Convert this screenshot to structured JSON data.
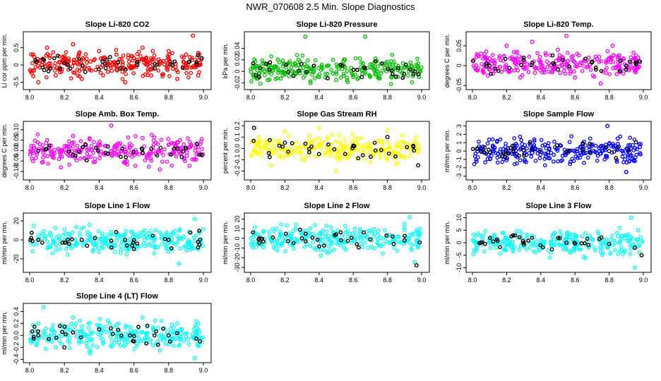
{
  "page_title": "NWR_070608  2.5 Min. Slope Diagnostics",
  "chart_data": [
    {
      "type": "scatter",
      "title": "Slope Li-820 CO2",
      "ylabel": "Li cor ppm per min.",
      "color": "#ff0000",
      "xlim": [
        8.0,
        9.0
      ],
      "ylim": [
        -0.65,
        0.9
      ],
      "xticks": [
        "8.0",
        "8.2",
        "8.4",
        "8.6",
        "8.8",
        "9.0"
      ],
      "yticks": [
        -0.5,
        0,
        0.5
      ],
      "ytick_labels": [
        "-0.5",
        "0",
        "0.5"
      ],
      "points": [
        [
          8.02,
          0.3
        ],
        [
          8.05,
          -0.5
        ],
        [
          8.1,
          0.5
        ],
        [
          8.15,
          -0.3
        ],
        [
          8.2,
          0.2
        ],
        [
          8.25,
          0.6
        ],
        [
          8.3,
          -0.4
        ],
        [
          8.35,
          0.1
        ],
        [
          8.4,
          0.4
        ],
        [
          8.45,
          -0.2
        ],
        [
          8.5,
          0.3
        ],
        [
          8.55,
          -0.5
        ],
        [
          8.6,
          0.2
        ],
        [
          8.65,
          0.5
        ],
        [
          8.7,
          -0.3
        ],
        [
          8.75,
          0.1
        ],
        [
          8.8,
          0.4
        ],
        [
          8.85,
          -0.4
        ],
        [
          8.9,
          0.3
        ],
        [
          8.94,
          0.85
        ],
        [
          8.97,
          -0.3
        ]
      ],
      "black_points": [
        [
          8.04,
          0.1
        ],
        [
          8.12,
          -0.1
        ],
        [
          8.22,
          0.0
        ],
        [
          8.32,
          -0.2
        ],
        [
          8.42,
          0.1
        ],
        [
          8.52,
          -0.1
        ],
        [
          8.62,
          0.0
        ],
        [
          8.72,
          -0.1
        ],
        [
          8.82,
          0.0
        ],
        [
          8.92,
          0.1
        ],
        [
          8.99,
          0.2
        ]
      ]
    },
    {
      "type": "scatter",
      "title": "Slope Li-820 Pressure",
      "ylabel": "kPa per min.",
      "color": "#00c000",
      "xlim": [
        8.0,
        9.0
      ],
      "ylim": [
        -0.028,
        0.065
      ],
      "xticks": [
        "8.0",
        "8.2",
        "8.4",
        "8.6",
        "8.8",
        "9.0"
      ],
      "yticks": [
        -0.02,
        0,
        0.02,
        0.04
      ],
      "ytick_labels": [
        "-0.02",
        "0",
        "0.02",
        "0.04"
      ],
      "points": [
        [
          8.03,
          -0.01
        ],
        [
          8.1,
          -0.015
        ],
        [
          8.2,
          -0.005
        ],
        [
          8.28,
          0.02
        ],
        [
          8.32,
          0.06
        ],
        [
          8.35,
          -0.02
        ],
        [
          8.4,
          -0.01
        ],
        [
          8.5,
          -0.015
        ],
        [
          8.6,
          -0.01
        ],
        [
          8.67,
          0.06
        ],
        [
          8.75,
          -0.012
        ],
        [
          8.85,
          -0.01
        ],
        [
          8.95,
          -0.008
        ]
      ],
      "black_points": [
        [
          8.05,
          -0.01
        ],
        [
          8.25,
          -0.008
        ],
        [
          8.45,
          -0.012
        ],
        [
          8.65,
          -0.01
        ],
        [
          8.85,
          -0.009
        ],
        [
          8.98,
          -0.005
        ]
      ]
    },
    {
      "type": "scatter",
      "title": "Slope Li-820 Temp.",
      "ylabel": "degrees C per min.",
      "color": "#ff00ff",
      "xlim": [
        8.0,
        9.0
      ],
      "ylim": [
        -0.055,
        0.08
      ],
      "xticks": [
        "8.0",
        "8.2",
        "8.4",
        "8.6",
        "8.8",
        "9.0"
      ],
      "yticks": [
        -0.05,
        0,
        0.05
      ],
      "ytick_labels": [
        "-0.05",
        "0",
        "0.05"
      ],
      "points": [
        [
          8.05,
          0.03
        ],
        [
          8.12,
          -0.02
        ],
        [
          8.2,
          0.05
        ],
        [
          8.28,
          -0.03
        ],
        [
          8.35,
          0.06
        ],
        [
          8.42,
          -0.01
        ],
        [
          8.5,
          0.04
        ],
        [
          8.55,
          0.075
        ],
        [
          8.6,
          -0.03
        ],
        [
          8.68,
          0.02
        ],
        [
          8.75,
          -0.045
        ],
        [
          8.82,
          0.05
        ],
        [
          8.9,
          -0.01
        ],
        [
          8.97,
          0.02
        ]
      ],
      "black_points": [
        [
          8.1,
          0.0
        ],
        [
          8.3,
          0.02
        ],
        [
          8.5,
          -0.01
        ],
        [
          8.7,
          0.01
        ],
        [
          8.9,
          0.0
        ],
        [
          8.98,
          0.01
        ]
      ]
    },
    {
      "type": "scatter",
      "title": "Slope Amb. Box Temp.",
      "ylabel": "degrees C per min.",
      "color": "#ff00ff",
      "xlim": [
        8.0,
        9.0
      ],
      "ylim": [
        -0.13,
        0.13
      ],
      "xticks": [
        "8.0",
        "8.2",
        "8.4",
        "8.6",
        "8.8",
        "9.0"
      ],
      "yticks": [
        -0.1,
        -0.05,
        0,
        0.05,
        0.1
      ],
      "ytick_labels": [
        "-0.10",
        "-0.05",
        "0.00",
        "0.05",
        "0.10"
      ],
      "points": [
        [
          8.02,
          -0.05
        ],
        [
          8.1,
          0.05
        ],
        [
          8.18,
          -0.08
        ],
        [
          8.25,
          0.07
        ],
        [
          8.35,
          -0.03
        ],
        [
          8.47,
          0.12
        ],
        [
          8.55,
          -0.06
        ],
        [
          8.65,
          0.06
        ],
        [
          8.75,
          -0.09
        ],
        [
          8.85,
          0.04
        ],
        [
          8.95,
          -0.04
        ]
      ],
      "black_points": [
        [
          8.05,
          0.0
        ],
        [
          8.25,
          -0.02
        ],
        [
          8.45,
          0.02
        ],
        [
          8.65,
          -0.01
        ],
        [
          8.85,
          0.01
        ],
        [
          8.99,
          -0.02
        ]
      ]
    },
    {
      "type": "scatter",
      "title": "Slope Gas Stream RH",
      "ylabel": "percent per min.",
      "color": "#ffff00",
      "xlim": [
        8.0,
        9.0
      ],
      "ylim": [
        -0.26,
        0.22
      ],
      "xticks": [
        "8.0",
        "8.2",
        "8.4",
        "8.6",
        "8.8",
        "9.0"
      ],
      "yticks": [
        -0.2,
        -0.1,
        0,
        0.1,
        0.2
      ],
      "ytick_labels": [
        "-0.2",
        "-0.1",
        "0.0",
        "0.1",
        "0.2"
      ],
      "points": [
        [
          8.05,
          0.1
        ],
        [
          8.12,
          -0.15
        ],
        [
          8.2,
          0.15
        ],
        [
          8.3,
          -0.1
        ],
        [
          8.4,
          0.18
        ],
        [
          8.5,
          -0.2
        ],
        [
          8.6,
          0.12
        ],
        [
          8.7,
          -0.12
        ],
        [
          8.8,
          0.16
        ],
        [
          8.9,
          -0.08
        ],
        [
          8.97,
          0.1
        ]
      ],
      "black_points": [
        [
          8.02,
          0.18
        ],
        [
          8.2,
          0.05
        ],
        [
          8.4,
          -0.05
        ],
        [
          8.6,
          0.02
        ],
        [
          8.8,
          0.1
        ],
        [
          8.98,
          -0.15
        ]
      ]
    },
    {
      "type": "scatter",
      "title": "Slope Sample Flow",
      "ylabel": "ml/min per min.",
      "color": "#0000ff",
      "xlim": [
        8.0,
        9.0
      ],
      "ylim": [
        -3.2,
        3.3
      ],
      "xticks": [
        "8.0",
        "8.2",
        "8.4",
        "8.6",
        "8.8",
        "9.0"
      ],
      "yticks": [
        -3,
        -2,
        -1,
        0,
        1,
        2,
        3
      ],
      "ytick_labels": [
        "-3",
        "-2",
        "-1",
        "0",
        "1",
        "2",
        "3"
      ],
      "points": [
        [
          8.05,
          0.2
        ],
        [
          8.15,
          -0.3
        ],
        [
          8.25,
          0.4
        ],
        [
          8.35,
          -0.2
        ],
        [
          8.45,
          0.3
        ],
        [
          8.55,
          -0.1
        ],
        [
          8.65,
          0.2
        ],
        [
          8.75,
          -0.3
        ],
        [
          8.79,
          3.0
        ],
        [
          8.85,
          1.5
        ],
        [
          8.9,
          -2.5
        ],
        [
          8.95,
          -1.2
        ],
        [
          8.98,
          0.5
        ]
      ],
      "black_points": [
        [
          8.05,
          0.0
        ],
        [
          8.3,
          0.1
        ],
        [
          8.55,
          -0.1
        ],
        [
          8.8,
          0.0
        ]
      ]
    },
    {
      "type": "scatter",
      "title": "Slope Line 1 Flow",
      "ylabel": "ml/min per min.",
      "color": "#00ffff",
      "xlim": [
        8.0,
        9.0
      ],
      "ylim": [
        -32,
        26
      ],
      "xticks": [
        "8.0",
        "8.2",
        "8.4",
        "8.6",
        "8.8",
        "9.0"
      ],
      "yticks": [
        -20,
        0,
        20
      ],
      "ytick_labels": [
        "-20",
        "0",
        "20"
      ],
      "points": [
        [
          8.05,
          0.5
        ],
        [
          8.2,
          -1
        ],
        [
          8.4,
          1
        ],
        [
          8.6,
          -0.5
        ],
        [
          8.8,
          1
        ],
        [
          8.86,
          -25
        ],
        [
          8.92,
          8
        ],
        [
          8.95,
          22
        ],
        [
          8.97,
          -10
        ]
      ],
      "black_points": [
        [
          8.05,
          0
        ],
        [
          8.3,
          0
        ],
        [
          8.55,
          0
        ],
        [
          8.8,
          0
        ],
        [
          8.98,
          0
        ]
      ]
    },
    {
      "type": "scatter",
      "title": "Slope Line 2 Flow",
      "ylabel": "ml/min per min.",
      "color": "#00ffff",
      "xlim": [
        8.0,
        9.0
      ],
      "ylim": [
        -33,
        24
      ],
      "xticks": [
        "8.0",
        "8.2",
        "8.4",
        "8.6",
        "8.8",
        "9.0"
      ],
      "yticks": [
        -30,
        -20,
        -10,
        0,
        10,
        20
      ],
      "ytick_labels": [
        "-30",
        "-20",
        "-10",
        "0",
        "10",
        "20"
      ],
      "points": [
        [
          8.05,
          0
        ],
        [
          8.2,
          1
        ],
        [
          8.4,
          -1
        ],
        [
          8.5,
          5
        ],
        [
          8.6,
          -2
        ],
        [
          8.8,
          3
        ],
        [
          8.9,
          15
        ],
        [
          8.93,
          22
        ],
        [
          8.96,
          -25
        ],
        [
          8.98,
          -8
        ]
      ],
      "black_points": [
        [
          8.05,
          0
        ],
        [
          8.3,
          0
        ],
        [
          8.5,
          4
        ],
        [
          8.7,
          -1
        ],
        [
          8.9,
          -2
        ],
        [
          8.97,
          -28
        ]
      ]
    },
    {
      "type": "scatter",
      "title": "Slope Line 3 Flow",
      "ylabel": "ml/min per min.",
      "color": "#00ffff",
      "xlim": [
        8.0,
        9.0
      ],
      "ylim": [
        -11,
        11
      ],
      "xticks": [
        "8.0",
        "8.2",
        "8.4",
        "8.6",
        "8.8",
        "9.0"
      ],
      "yticks": [
        -10,
        -5,
        0,
        5,
        10
      ],
      "ytick_labels": [
        "-10",
        "-5",
        "0",
        "5",
        "10"
      ],
      "points": [
        [
          8.05,
          0
        ],
        [
          8.2,
          -1
        ],
        [
          8.4,
          1
        ],
        [
          8.6,
          -1
        ],
        [
          8.8,
          0
        ],
        [
          8.9,
          3
        ],
        [
          8.93,
          10
        ],
        [
          8.95,
          -10
        ],
        [
          8.97,
          5
        ]
      ],
      "black_points": [
        [
          8.05,
          0
        ],
        [
          8.3,
          0
        ],
        [
          8.55,
          0
        ],
        [
          8.8,
          -0.5
        ],
        [
          8.95,
          -2
        ],
        [
          8.99,
          -5
        ]
      ]
    },
    {
      "type": "scatter",
      "title": "Slope Line 4 (LT) Flow",
      "ylabel": "ml/min per min.",
      "color": "#00ffff",
      "xlim": [
        8.0,
        9.0
      ],
      "ylim": [
        -0.42,
        0.5
      ],
      "xticks": [
        "8.0",
        "8.2",
        "8.4",
        "8.6",
        "8.8",
        "9.0"
      ],
      "yticks": [
        -0.4,
        -0.2,
        0,
        0.2,
        0.4
      ],
      "ytick_labels": [
        "-0.4",
        "-0.2",
        "0.0",
        "0.2",
        "0.4"
      ],
      "points": [
        [
          8.05,
          0.2
        ],
        [
          8.08,
          0.47
        ],
        [
          8.15,
          -0.2
        ],
        [
          8.25,
          0.3
        ],
        [
          8.35,
          -0.3
        ],
        [
          8.45,
          0.25
        ],
        [
          8.55,
          -0.15
        ],
        [
          8.65,
          0.3
        ],
        [
          8.75,
          -0.25
        ],
        [
          8.85,
          0.2
        ],
        [
          8.95,
          -0.38
        ]
      ],
      "black_points": [
        [
          8.05,
          0.0
        ],
        [
          8.2,
          -0.2
        ],
        [
          8.4,
          0.1
        ],
        [
          8.6,
          -0.1
        ],
        [
          8.8,
          0.0
        ],
        [
          8.98,
          -0.1
        ]
      ]
    }
  ]
}
